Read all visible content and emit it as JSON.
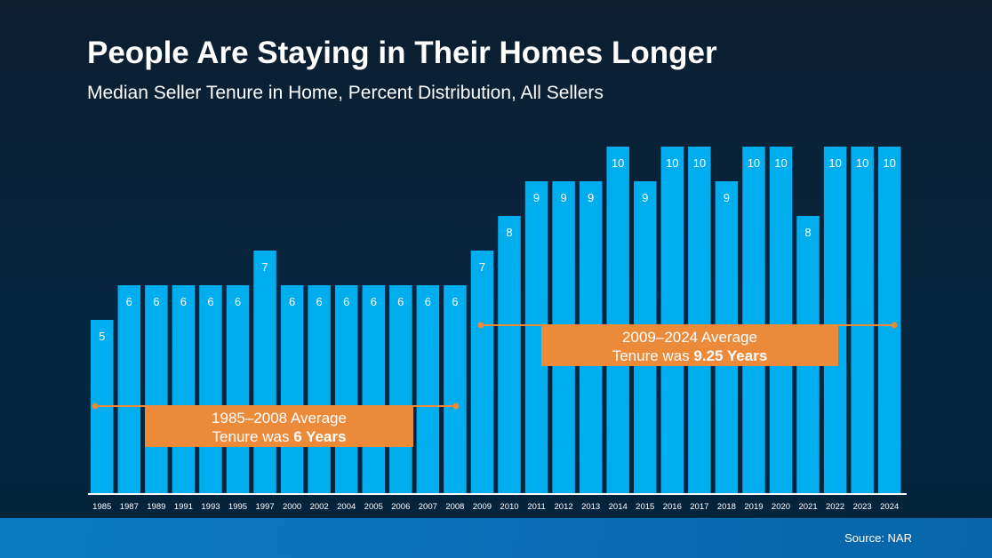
{
  "chart_data": {
    "type": "bar",
    "title": "People Are Staying in Their Homes Longer",
    "subtitle": "Median Seller Tenure in Home, Percent Distribution, All Sellers",
    "categories": [
      "1985",
      "1987",
      "1989",
      "1991",
      "1993",
      "1995",
      "1997",
      "2000",
      "2002",
      "2004",
      "2005",
      "2006",
      "2007",
      "2008",
      "2009",
      "2010",
      "2011",
      "2012",
      "2013",
      "2014",
      "2015",
      "2016",
      "2017",
      "2018",
      "2019",
      "2020",
      "2021",
      "2022",
      "2023",
      "2024"
    ],
    "values": [
      5,
      6,
      6,
      6,
      6,
      6,
      7,
      6,
      6,
      6,
      6,
      6,
      6,
      6,
      7,
      8,
      9,
      9,
      9,
      10,
      9,
      10,
      10,
      9,
      10,
      10,
      8,
      10,
      10,
      10
    ],
    "ylim": [
      0,
      10
    ],
    "grid": false,
    "annotations": [
      {
        "line1": "1985–2008 Average",
        "line2_prefix": "Tenure was ",
        "line2_bold": "6 Years",
        "from": "1985",
        "to": "2008"
      },
      {
        "line1": "2009–2024 Average",
        "line2_prefix": "Tenure was ",
        "line2_bold": "9.25 Years",
        "from": "2009",
        "to": "2024"
      }
    ],
    "colors": {
      "bar": "#00aeef",
      "annotation": "#ec8a3a",
      "background": "#062640",
      "footer": "#0a72b8"
    }
  },
  "footer": {
    "source": "Source: NAR"
  }
}
